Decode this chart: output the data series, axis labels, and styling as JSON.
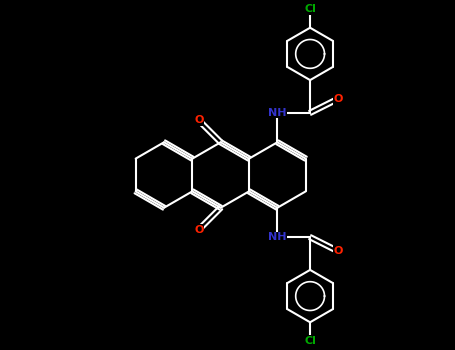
{
  "bg": "#000000",
  "wc": "#ffffff",
  "oc": "#ff2200",
  "nc": "#3333cc",
  "clc": "#00aa00",
  "blw": 1.5,
  "doff": 0.048,
  "xlim": [
    0,
    10
  ],
  "ylim": [
    0,
    7.7
  ]
}
